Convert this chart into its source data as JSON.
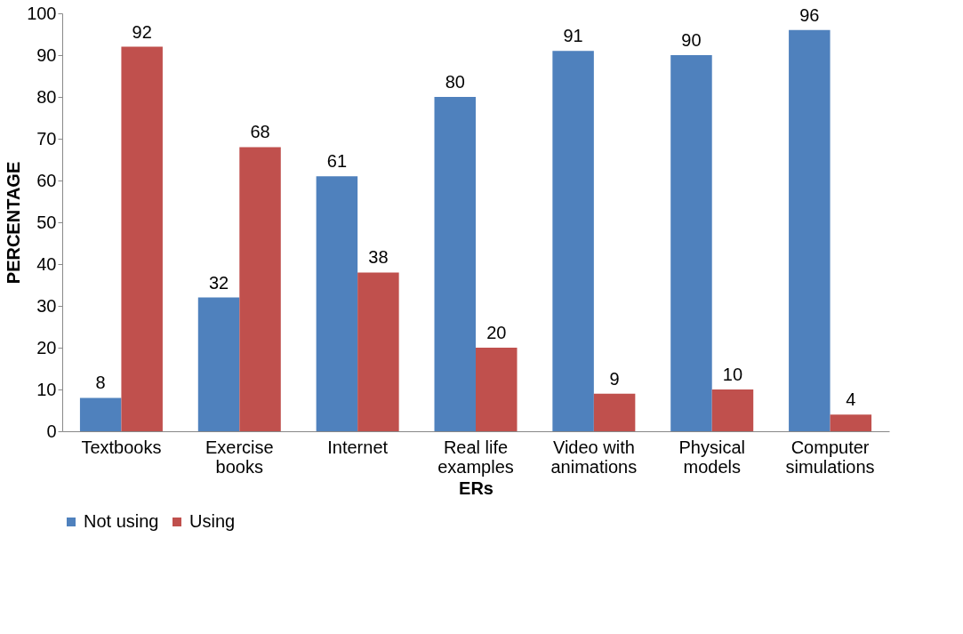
{
  "chart_data": {
    "type": "bar",
    "xlabel": "ERs",
    "ylabel": "PERCENTAGE",
    "categories": [
      "Textbooks",
      "Exercise books",
      "Internet",
      "Real life examples",
      "Video with animations",
      "Physical models",
      "Computer simulations"
    ],
    "series": [
      {
        "name": "Not using",
        "color": "#4f81bd",
        "values": [
          8,
          32,
          61,
          80,
          91,
          90,
          96
        ]
      },
      {
        "name": "Using",
        "color": "#c0504d",
        "values": [
          92,
          68,
          38,
          20,
          9,
          10,
          4
        ]
      }
    ],
    "ylim": [
      0,
      100
    ],
    "yticks": [
      0,
      10,
      20,
      30,
      40,
      50,
      60,
      70,
      80,
      90,
      100
    ],
    "grid": false,
    "legend": "bottom",
    "data_labels": true
  }
}
